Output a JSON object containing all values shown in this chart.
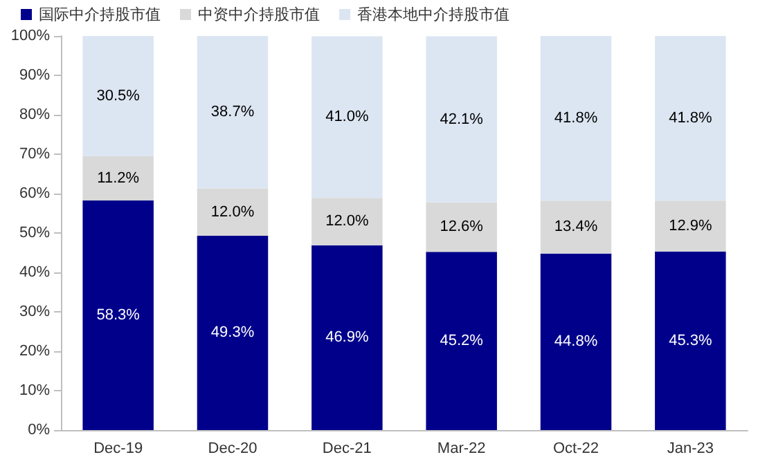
{
  "chart_data": {
    "type": "bar",
    "stacked": true,
    "categories": [
      "Dec-19",
      "Dec-20",
      "Dec-21",
      "Mar-22",
      "Oct-22",
      "Jan-23"
    ],
    "series": [
      {
        "name": "国际中介持股市值",
        "color": "#00008b",
        "values": [
          58.3,
          49.3,
          46.9,
          45.2,
          44.8,
          45.3
        ],
        "value_labels": [
          "58.3%",
          "49.3%",
          "46.9%",
          "45.2%",
          "44.8%",
          "45.3%"
        ]
      },
      {
        "name": "中资中介持股市值",
        "color": "#d9d9d9",
        "values": [
          11.2,
          12.0,
          12.0,
          12.6,
          13.4,
          12.9
        ],
        "value_labels": [
          "11.2%",
          "12.0%",
          "12.0%",
          "12.6%",
          "13.4%",
          "12.9%"
        ]
      },
      {
        "name": "香港本地中介持股市值",
        "color": "#dce6f2",
        "values": [
          30.5,
          38.7,
          41.0,
          42.1,
          41.8,
          41.8
        ],
        "value_labels": [
          "30.5%",
          "38.7%",
          "41.0%",
          "42.1%",
          "41.8%",
          "41.8%"
        ]
      }
    ],
    "ylim": [
      0,
      100
    ],
    "yticks": [
      {
        "value": 0,
        "label": "0%"
      },
      {
        "value": 10,
        "label": "10%"
      },
      {
        "value": 20,
        "label": "20%"
      },
      {
        "value": 30,
        "label": "30%"
      },
      {
        "value": 40,
        "label": "40%"
      },
      {
        "value": 50,
        "label": "50%"
      },
      {
        "value": 60,
        "label": "60%"
      },
      {
        "value": 70,
        "label": "70%"
      },
      {
        "value": 80,
        "label": "80%"
      },
      {
        "value": 90,
        "label": "90%"
      },
      {
        "value": 100,
        "label": "100%"
      }
    ],
    "legend": "top",
    "grid": false
  }
}
